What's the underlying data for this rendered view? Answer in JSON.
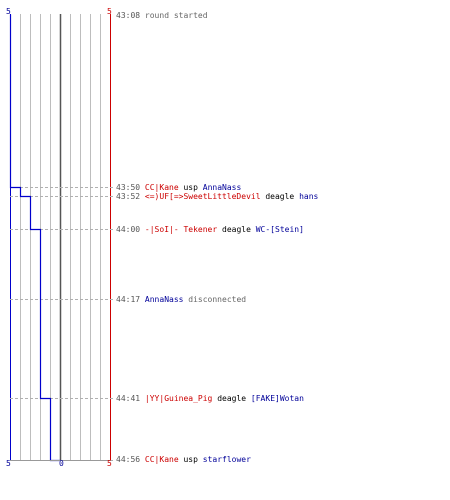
{
  "colors": {
    "team_blue": "#0000cc",
    "team_red": "#cc0000",
    "grid": "#bdbdbd",
    "center": "#555555",
    "text_time": "#555555",
    "text_name_red": "#cc0000",
    "text_name_blue": "#000099",
    "text_info": "#666666"
  },
  "scale": {
    "top_left": "5",
    "top_right": "5",
    "bottom_left": "5",
    "bottom_center": "0",
    "bottom_right": "5"
  },
  "events": [
    {
      "time": "43:08",
      "type": "info",
      "text": "round started"
    },
    {
      "time": "43:50",
      "type": "kill",
      "killer": "CC|Kane",
      "killer_team": "red",
      "weapon": "usp",
      "victim": "AnnaNass",
      "victim_team": "blue"
    },
    {
      "time": "43:52",
      "type": "kill",
      "killer": "<=)UF[=>SweetLittleDevil",
      "killer_team": "red",
      "weapon": "deagle",
      "victim": "hans",
      "victim_team": "blue"
    },
    {
      "time": "44:00",
      "type": "kill",
      "killer": "-|SoI|- Tekener",
      "killer_team": "red",
      "weapon": "deagle",
      "victim": "WC-[Stein]",
      "victim_team": "blue"
    },
    {
      "time": "44:17",
      "type": "disconnect",
      "player": "AnnaNass",
      "player_team": "blue",
      "text": "disconnected"
    },
    {
      "time": "44:41",
      "type": "kill",
      "killer": "|YY|Guinea_Pig",
      "killer_team": "red",
      "weapon": "deagle",
      "victim": "[FAKE]Wotan",
      "victim_team": "blue"
    },
    {
      "time": "44:56",
      "type": "kill",
      "killer": "CC|Kane",
      "killer_team": "red",
      "weapon": "usp",
      "victim": "starflower",
      "victim_team": "blue"
    }
  ],
  "blue_alive": [
    5,
    4,
    3,
    2,
    2,
    1,
    0
  ]
}
